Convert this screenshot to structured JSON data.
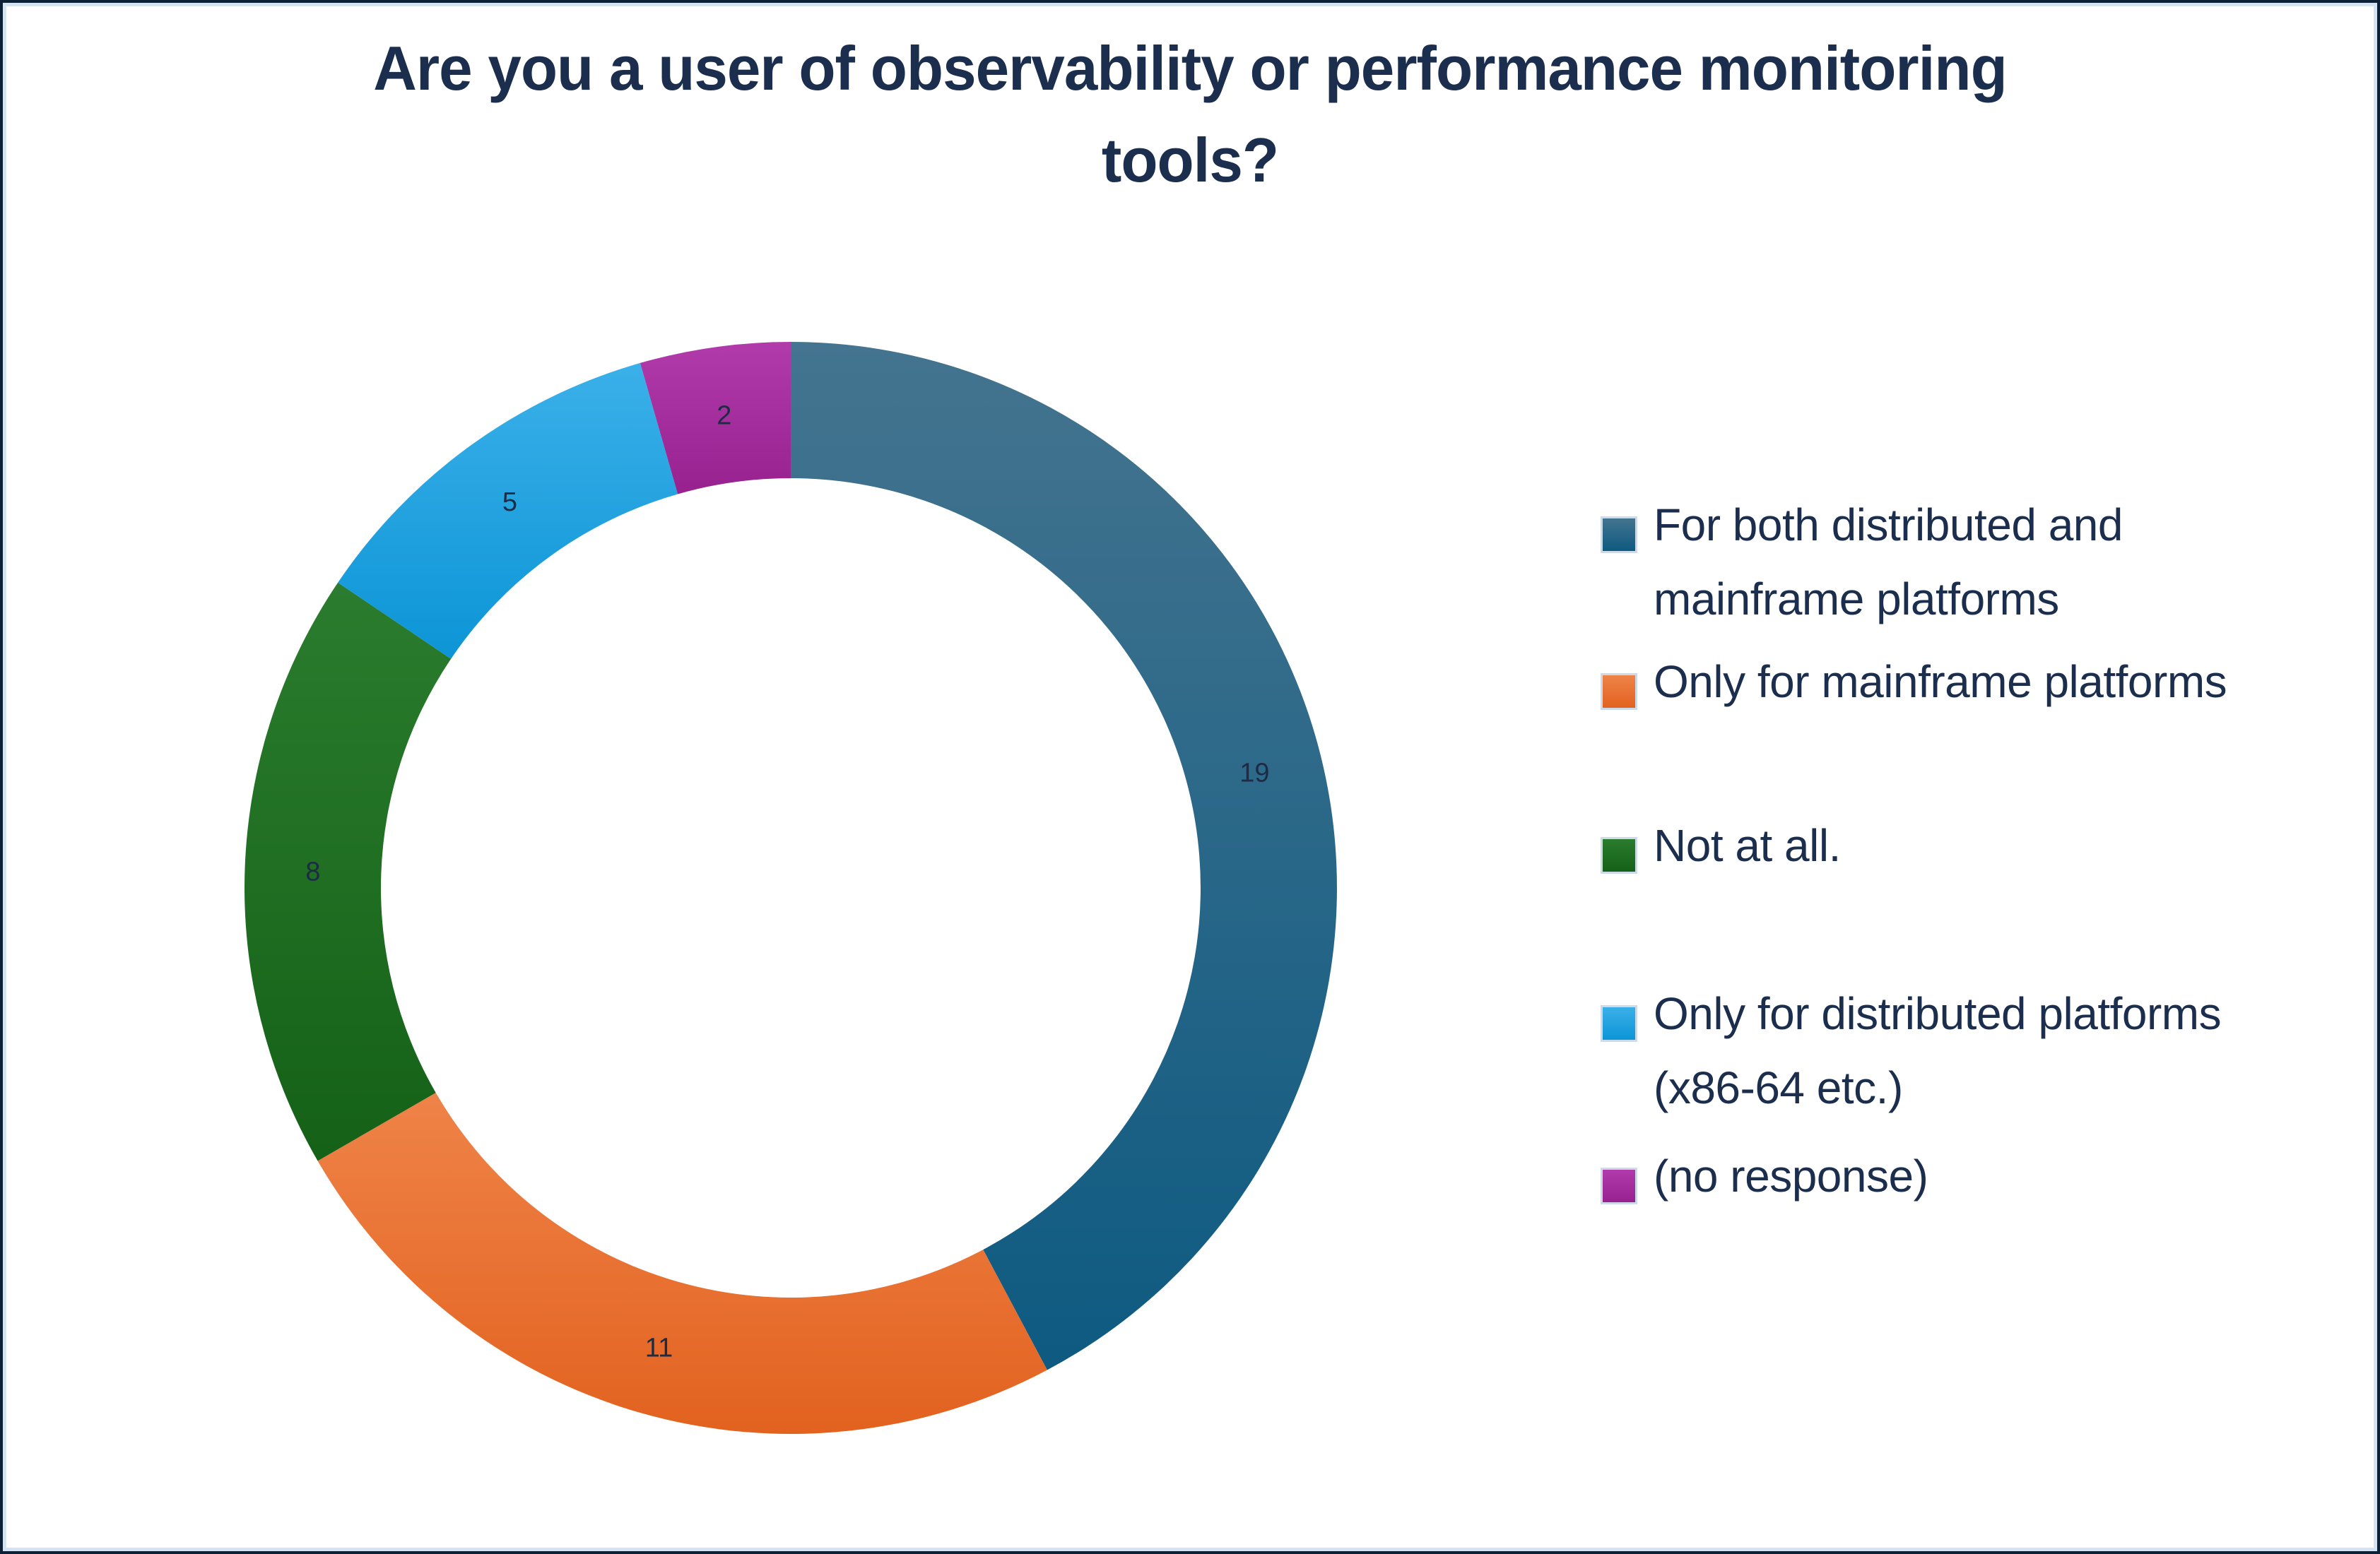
{
  "page": {
    "background_color": "#ffffff",
    "frame_outer_color": "#0d2136",
    "frame_inner_color": "#d5e4f4",
    "title_color": "#1b2e4e"
  },
  "chart_data": {
    "type": "pie",
    "subtype": "donut",
    "title": "Are you a user of observability or performance monitoring tools?",
    "title_display": "Are you a user of observability or performance monitoring\ntools?",
    "direction": "clockwise",
    "start_angle_deg": 0,
    "total": 45,
    "legend_position": "right",
    "data_label_color": "#1e2b45",
    "slices": [
      {
        "label": "For both distributed and mainframe platforms",
        "legend_label": "For both distributed and\nmainframe platforms",
        "value": 19,
        "color": "#16618a",
        "gradient_top": "#44748f",
        "gradient_bottom": "#0e5a81"
      },
      {
        "label": "Only for  mainframe platforms",
        "legend_label": "Only for  mainframe platforms",
        "value": 11,
        "color": "#ea6c29",
        "gradient_top": "#ef8348",
        "gradient_bottom": "#e2621f"
      },
      {
        "label": "Not at all.",
        "legend_label": "Not at all.",
        "value": 8,
        "color": "#1d6e22",
        "gradient_top": "#2b7c2e",
        "gradient_bottom": "#146117"
      },
      {
        "label": "Only for distributed platforms (x86-64 etc.)",
        "legend_label": "Only for distributed platforms\n(x86-64 etc.)",
        "value": 5,
        "color": "#17a2e2",
        "gradient_top": "#3bb0e9",
        "gradient_bottom": "#0c95d6"
      },
      {
        "label": "(no response)",
        "legend_label": "(no response)",
        "value": 2,
        "color": "#a4259c",
        "gradient_top": "#b23bab",
        "gradient_bottom": "#97218f"
      }
    ]
  }
}
